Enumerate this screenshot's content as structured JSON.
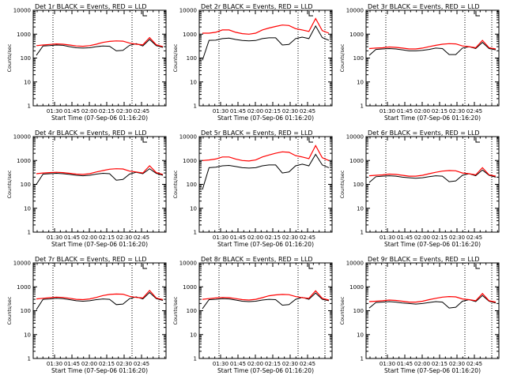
{
  "chart_data": [
    {
      "type": "line",
      "title": "Det 1r BLACK = Events, RED = LLD",
      "xlabel": "Start Time (07-Sep-06 01:16:20)",
      "ylabel": "Counts/sec",
      "series": [
        {
          "name": "Events",
          "values": [
            130,
            320,
            330,
            350,
            340,
            300,
            270,
            260,
            270,
            300,
            320,
            310,
            200,
            210,
            340,
            400,
            320,
            600,
            330,
            280
          ]
        },
        {
          "name": "LLD",
          "values": [
            330,
            350,
            370,
            390,
            380,
            350,
            320,
            310,
            330,
            380,
            450,
            500,
            520,
            510,
            420,
            380,
            360,
            720,
            360,
            300
          ]
        }
      ]
    },
    {
      "type": "line",
      "title": "Det 2r BLACK = Events, RED = LLD",
      "xlabel": "Start Time (07-Sep-06 01:16:20)",
      "ylabel": "Counts/sec",
      "series": [
        {
          "name": "Events",
          "values": [
            80,
            550,
            560,
            650,
            680,
            600,
            540,
            520,
            540,
            650,
            700,
            700,
            350,
            370,
            650,
            750,
            650,
            2200,
            720,
            550
          ]
        },
        {
          "name": "LLD",
          "values": [
            1100,
            1100,
            1200,
            1500,
            1500,
            1200,
            1050,
            1000,
            1100,
            1500,
            1800,
            2100,
            2400,
            2300,
            1700,
            1500,
            1300,
            4500,
            1400,
            1100
          ]
        }
      ]
    },
    {
      "type": "line",
      "title": "Det 3r BLACK = Events, RED = LLD",
      "xlabel": "Start Time (07-Sep-06 01:16:20)",
      "ylabel": "Counts/sec",
      "series": [
        {
          "name": "Events",
          "values": [
            130,
            230,
            240,
            250,
            240,
            220,
            200,
            200,
            210,
            230,
            260,
            250,
            140,
            140,
            260,
            300,
            250,
            450,
            250,
            220
          ]
        },
        {
          "name": "LLD",
          "values": [
            250,
            260,
            270,
            290,
            280,
            260,
            240,
            240,
            260,
            300,
            340,
            380,
            400,
            390,
            320,
            300,
            270,
            550,
            270,
            240
          ]
        }
      ]
    },
    {
      "type": "line",
      "title": "Det 4r BLACK = Events, RED = LLD",
      "xlabel": "Start Time (07-Sep-06 01:16:20)",
      "ylabel": "Counts/sec",
      "series": [
        {
          "name": "Events",
          "values": [
            100,
            270,
            280,
            290,
            280,
            260,
            240,
            230,
            240,
            270,
            290,
            280,
            150,
            160,
            270,
            320,
            280,
            450,
            290,
            240
          ]
        },
        {
          "name": "LLD",
          "values": [
            280,
            300,
            310,
            320,
            310,
            290,
            270,
            260,
            280,
            330,
            380,
            430,
            450,
            440,
            360,
            330,
            300,
            600,
            310,
            260
          ]
        }
      ]
    },
    {
      "type": "line",
      "title": "Det 5r BLACK = Events, RED = LLD",
      "xlabel": "Start Time (07-Sep-06 01:16:20)",
      "ylabel": "Counts/sec",
      "series": [
        {
          "name": "Events",
          "values": [
            60,
            500,
            520,
            600,
            620,
            560,
            500,
            480,
            500,
            600,
            650,
            650,
            300,
            330,
            600,
            700,
            600,
            1800,
            650,
            500
          ]
        },
        {
          "name": "LLD",
          "values": [
            1000,
            1050,
            1150,
            1400,
            1400,
            1150,
            1000,
            950,
            1050,
            1400,
            1700,
            2000,
            2300,
            2200,
            1600,
            1400,
            1200,
            4200,
            1300,
            1000
          ]
        }
      ]
    },
    {
      "type": "line",
      "title": "Det 6r BLACK = Events, RED = LLD",
      "xlabel": "Start Time (07-Sep-06 01:16:20)",
      "ylabel": "Counts/sec",
      "series": [
        {
          "name": "Events",
          "values": [
            120,
            210,
            220,
            230,
            220,
            200,
            190,
            180,
            190,
            210,
            230,
            220,
            130,
            140,
            240,
            280,
            230,
            400,
            240,
            200
          ]
        },
        {
          "name": "LLD",
          "values": [
            230,
            240,
            250,
            270,
            260,
            240,
            220,
            220,
            240,
            280,
            320,
            360,
            380,
            370,
            300,
            280,
            250,
            500,
            250,
            220
          ]
        }
      ]
    },
    {
      "type": "line",
      "title": "Det 7r BLACK = Events, RED = LLD",
      "xlabel": "Start Time (07-Sep-06 01:16:20)",
      "ylabel": "Counts/sec",
      "series": [
        {
          "name": "Events",
          "values": [
            110,
            300,
            310,
            330,
            320,
            290,
            260,
            250,
            260,
            290,
            310,
            300,
            180,
            190,
            320,
            380,
            310,
            580,
            320,
            270
          ]
        },
        {
          "name": "LLD",
          "values": [
            310,
            330,
            350,
            370,
            360,
            330,
            300,
            290,
            310,
            360,
            430,
            480,
            500,
            490,
            400,
            360,
            340,
            700,
            340,
            290
          ]
        }
      ]
    },
    {
      "type": "line",
      "title": "Det 8r BLACK = Events, RED = LLD",
      "xlabel": "Start Time (07-Sep-06 01:16:20)",
      "ylabel": "Counts/sec",
      "series": [
        {
          "name": "Events",
          "values": [
            120,
            290,
            300,
            320,
            310,
            280,
            250,
            240,
            250,
            280,
            300,
            290,
            170,
            180,
            300,
            360,
            300,
            550,
            300,
            260
          ]
        },
        {
          "name": "LLD",
          "values": [
            300,
            320,
            340,
            360,
            350,
            320,
            290,
            280,
            300,
            350,
            420,
            460,
            480,
            470,
            390,
            350,
            330,
            680,
            330,
            280
          ]
        }
      ]
    },
    {
      "type": "line",
      "title": "Det 9r BLACK = Events, RED = LLD",
      "xlabel": "Start Time (07-Sep-06 01:16:20)",
      "ylabel": "Counts/sec",
      "series": [
        {
          "name": "Events",
          "values": [
            130,
            220,
            230,
            240,
            230,
            210,
            200,
            190,
            200,
            220,
            240,
            230,
            130,
            140,
            250,
            290,
            240,
            430,
            250,
            210
          ]
        },
        {
          "name": "LLD",
          "values": [
            240,
            250,
            260,
            280,
            270,
            250,
            230,
            230,
            250,
            290,
            330,
            370,
            390,
            380,
            310,
            290,
            260,
            520,
            260,
            230
          ]
        }
      ]
    }
  ],
  "x_ticks": [
    "01:30",
    "01:45",
    "02:00",
    "02:15",
    "02:30",
    "02:45"
  ],
  "y_ticks": [
    "1",
    "10",
    "100",
    "1000",
    "10000"
  ],
  "ylim": [
    1,
    10000
  ],
  "x_grid": "hidden",
  "colors": {
    "events": "#000000",
    "lld": "#ff0000"
  }
}
